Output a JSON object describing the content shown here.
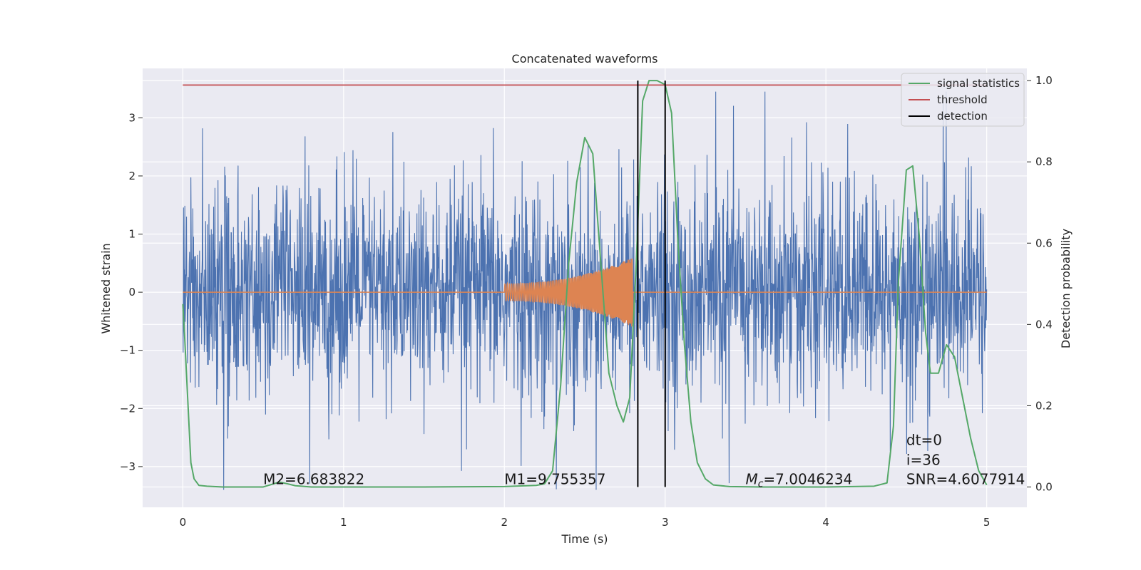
{
  "chart_data": {
    "type": "line",
    "title": "Concatenated waveforms",
    "xlabel": "Time (s)",
    "ylabel": "Whitened strain",
    "y2label": "Detection probability",
    "xlim": [
      -0.25,
      5.25
    ],
    "ylim": [
      -3.7,
      3.85
    ],
    "y2lim": [
      -0.05,
      1.03
    ],
    "x_ticks": [
      0,
      1,
      2,
      3,
      4,
      5
    ],
    "y_ticks": [
      -3,
      -2,
      -1,
      0,
      1,
      2,
      3
    ],
    "y_tick_labels": [
      "−3",
      "−2",
      "−1",
      "0",
      "1",
      "2",
      "3"
    ],
    "y2_ticks": [
      0.0,
      0.2,
      0.4,
      0.6,
      0.8,
      1.0
    ],
    "y2_tick_labels": [
      "0.0",
      "0.2",
      "0.4",
      "0.6",
      "0.8",
      "1.0"
    ],
    "grid": true,
    "legend_position": "top-right",
    "series": [
      {
        "name": "",
        "color": "#4c72b0",
        "kind": "noise",
        "x_range": [
          0,
          5
        ],
        "amplitude_band": [
          -3.4,
          3.45
        ]
      },
      {
        "name": "",
        "color": "#dd8452",
        "kind": "chirp",
        "x_range": [
          2.0,
          2.8
        ],
        "envelope_start": 0.15,
        "envelope_end": 0.6
      },
      {
        "name": "signal statistics",
        "color": "#55a868",
        "axis": "right",
        "x": [
          0,
          0.01,
          0.03,
          0.05,
          0.07,
          0.1,
          0.15,
          0.25,
          0.5,
          0.55,
          0.6,
          0.65,
          0.7,
          0.8,
          1.0,
          1.5,
          2.0,
          2.2,
          2.25,
          2.3,
          2.35,
          2.4,
          2.45,
          2.5,
          2.55,
          2.6,
          2.65,
          2.7,
          2.74,
          2.78,
          2.82,
          2.86,
          2.9,
          2.95,
          3.0,
          3.04,
          3.08,
          3.12,
          3.16,
          3.2,
          3.25,
          3.3,
          3.4,
          3.6,
          4.0,
          4.3,
          4.38,
          4.42,
          4.45,
          4.5,
          4.54,
          4.58,
          4.62,
          4.65,
          4.7,
          4.75,
          4.8,
          4.85,
          4.9,
          4.95,
          5.0
        ],
        "y": [
          0.45,
          0.38,
          0.22,
          0.06,
          0.02,
          0.004,
          0.002,
          0.0,
          0.0,
          0.006,
          0.012,
          0.008,
          0.003,
          0.0,
          0.0,
          0.0,
          0.001,
          0.004,
          0.008,
          0.04,
          0.25,
          0.55,
          0.75,
          0.86,
          0.82,
          0.55,
          0.28,
          0.2,
          0.16,
          0.22,
          0.55,
          0.95,
          1.0,
          1.0,
          0.99,
          0.92,
          0.6,
          0.35,
          0.16,
          0.06,
          0.02,
          0.005,
          0.001,
          0.0,
          0.0,
          0.002,
          0.01,
          0.15,
          0.5,
          0.78,
          0.79,
          0.62,
          0.38,
          0.28,
          0.28,
          0.35,
          0.32,
          0.22,
          0.12,
          0.04,
          0.005
        ]
      },
      {
        "name": "threshold",
        "color": "#c44e52",
        "axis": "right",
        "x": [
          0,
          5
        ],
        "y": [
          0.989,
          0.989
        ]
      },
      {
        "name": "detection",
        "color": "#000000",
        "axis": "right",
        "vlines": [
          2.83,
          3.0
        ],
        "y_range": [
          0.0,
          1.0
        ]
      }
    ],
    "legend": [
      {
        "label": "signal statistics",
        "color": "#55a868"
      },
      {
        "label": "threshold",
        "color": "#c44e52"
      },
      {
        "label": "detection",
        "color": "#000000"
      }
    ],
    "annotations": [
      {
        "text": "M2=6.683822",
        "x": 0.5,
        "y": -3.3
      },
      {
        "text": "M1=9.755357",
        "x": 2.0,
        "y": -3.3
      },
      {
        "text": "M",
        "sub": "c",
        "text2": "=7.0046234",
        "x": 3.5,
        "y": -3.3
      },
      {
        "text": "SNR=4.6077914",
        "x": 4.5,
        "y": -3.3
      },
      {
        "text": "i=36",
        "x": 4.5,
        "y": -2.97
      },
      {
        "text": "dt=0",
        "x": 4.5,
        "y": -2.63
      }
    ]
  }
}
